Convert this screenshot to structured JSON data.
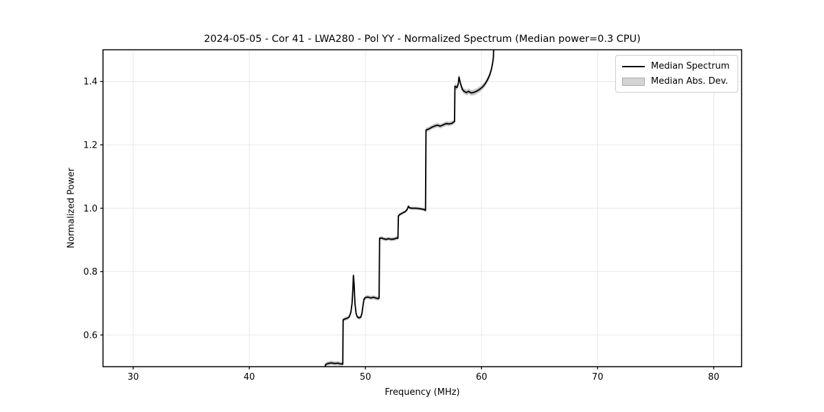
{
  "figure": {
    "title": "2024-05-05 - Cor 41 - LWA280 - Pol YY - Normalized Spectrum (Median power=0.3 CPU)",
    "xlabel": "Frequency (MHz)",
    "ylabel": "Normalized Power"
  },
  "legend": {
    "items": [
      {
        "label": "Median Spectrum",
        "type": "line",
        "color": "#000000"
      },
      {
        "label": "Median Abs. Dev.",
        "type": "patch",
        "color": "#d4d4d4"
      }
    ]
  },
  "chart_data": {
    "type": "line",
    "title": "2024-05-05 - Cor 41 - LWA280 - Pol YY - Normalized Spectrum (Median power=0.3 CPU)",
    "xlabel": "Frequency (MHz)",
    "ylabel": "Normalized Power",
    "xlim": [
      27.4,
      82.4
    ],
    "ylim": [
      0.5,
      1.5
    ],
    "xticks": [
      30,
      40,
      50,
      60,
      70,
      80
    ],
    "xtick_labels": [
      "30",
      "40",
      "50",
      "60",
      "70",
      "80"
    ],
    "yticks": [
      0.6,
      0.8,
      1.0,
      1.2,
      1.4
    ],
    "ytick_labels": [
      "0.6",
      "0.8",
      "1.0",
      "1.2",
      "1.4"
    ],
    "grid": true,
    "legend_position": "upper right",
    "colors": {
      "line": "#000000",
      "band": "#c8c8c8",
      "grid": "#e7e7e7",
      "spine": "#000000"
    },
    "series": [
      {
        "name": "Median Spectrum",
        "x": [
          46.5,
          46.56,
          46.7,
          46.9,
          47.1,
          47.35,
          47.6,
          47.85,
          48.05,
          48.08,
          48.2,
          48.35,
          48.5,
          48.62,
          48.75,
          48.85,
          48.92,
          48.97,
          49.03,
          49.1,
          49.2,
          49.3,
          49.45,
          49.6,
          49.7,
          49.8,
          49.88,
          50.0,
          50.2,
          50.45,
          50.7,
          50.95,
          51.12,
          51.18,
          51.22,
          51.4,
          51.6,
          51.8,
          52.0,
          52.2,
          52.5,
          52.7,
          52.8,
          52.84,
          53.0,
          53.2,
          53.45,
          53.6,
          53.7,
          53.82,
          54.0,
          54.3,
          54.6,
          54.9,
          55.05,
          55.18,
          55.22,
          55.45,
          55.75,
          56.0,
          56.2,
          56.45,
          56.7,
          56.95,
          57.2,
          57.45,
          57.6,
          57.68,
          57.71,
          57.9,
          58.0,
          58.06,
          58.2,
          58.35,
          58.5,
          58.7,
          58.9,
          59.1,
          59.3,
          59.5,
          59.7,
          59.9,
          60.1,
          60.3,
          60.5,
          60.7,
          60.85,
          60.95,
          61.02,
          61.06
        ],
        "y": [
          0.496,
          0.506,
          0.509,
          0.511,
          0.512,
          0.51,
          0.511,
          0.509,
          0.508,
          0.648,
          0.65,
          0.652,
          0.654,
          0.658,
          0.672,
          0.7,
          0.745,
          0.788,
          0.76,
          0.7,
          0.668,
          0.657,
          0.654,
          0.656,
          0.668,
          0.695,
          0.713,
          0.718,
          0.72,
          0.717,
          0.719,
          0.716,
          0.715,
          0.716,
          0.905,
          0.906,
          0.903,
          0.902,
          0.904,
          0.902,
          0.903,
          0.906,
          0.905,
          0.976,
          0.981,
          0.985,
          0.99,
          0.996,
          1.006,
          1.001,
          1.0,
          1.0,
          0.999,
          0.997,
          0.996,
          0.993,
          1.247,
          1.25,
          1.256,
          1.26,
          1.262,
          1.259,
          1.263,
          1.267,
          1.266,
          1.268,
          1.272,
          1.274,
          1.385,
          1.381,
          1.393,
          1.414,
          1.392,
          1.375,
          1.369,
          1.365,
          1.369,
          1.364,
          1.365,
          1.368,
          1.372,
          1.377,
          1.383,
          1.392,
          1.404,
          1.42,
          1.438,
          1.456,
          1.475,
          1.52
        ],
        "mad": [
          0.007,
          0.007,
          0.007,
          0.007,
          0.007,
          0.007,
          0.007,
          0.007,
          0.007,
          0.006,
          0.006,
          0.006,
          0.006,
          0.006,
          0.005,
          0.005,
          0.005,
          0.005,
          0.005,
          0.006,
          0.006,
          0.006,
          0.006,
          0.006,
          0.006,
          0.006,
          0.006,
          0.0065,
          0.0065,
          0.0065,
          0.0065,
          0.0065,
          0.0065,
          0.0065,
          0.006,
          0.006,
          0.006,
          0.006,
          0.006,
          0.006,
          0.006,
          0.006,
          0.006,
          0.005,
          0.005,
          0.005,
          0.005,
          0.005,
          0.005,
          0.005,
          0.005,
          0.005,
          0.005,
          0.005,
          0.005,
          0.005,
          0.007,
          0.007,
          0.007,
          0.007,
          0.007,
          0.007,
          0.007,
          0.007,
          0.007,
          0.007,
          0.007,
          0.007,
          0.009,
          0.009,
          0.009,
          0.009,
          0.009,
          0.009,
          0.009,
          0.009,
          0.009,
          0.009,
          0.009,
          0.009,
          0.009,
          0.009,
          0.009,
          0.009,
          0.009,
          0.009,
          0.009,
          0.009,
          0.009,
          0.009
        ]
      }
    ]
  }
}
